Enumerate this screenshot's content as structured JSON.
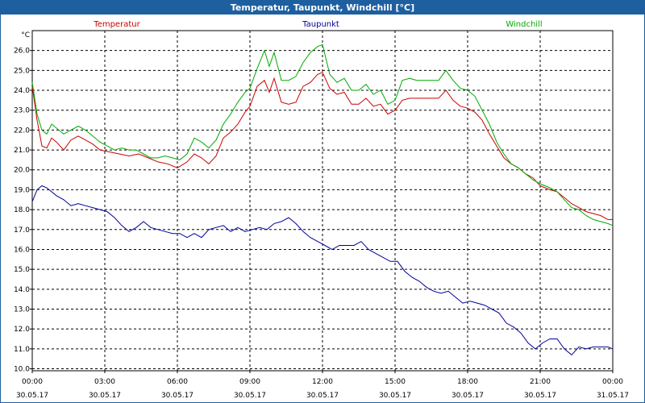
{
  "chart_data": {
    "type": "line",
    "title": "Temperatur, Taupunkt, Windchill [°C]",
    "ylabel": "°C",
    "ylim": [
      9.9,
      27.0
    ],
    "yticks": [
      "10.0",
      "11.0",
      "12.0",
      "13.0",
      "14.0",
      "15.0",
      "16.0",
      "17.0",
      "18.0",
      "19.0",
      "20.0",
      "21.0",
      "22.0",
      "23.0",
      "24.0",
      "25.0",
      "26.0"
    ],
    "xlim": [
      0,
      24
    ],
    "xticks": [
      {
        "time": "00:00",
        "date": "30.05.17"
      },
      {
        "time": "03:00",
        "date": "30.05.17"
      },
      {
        "time": "06:00",
        "date": "30.05.17"
      },
      {
        "time": "09:00",
        "date": "30.05.17"
      },
      {
        "time": "12:00",
        "date": "30.05.17"
      },
      {
        "time": "15:00",
        "date": "30.05.17"
      },
      {
        "time": "18:00",
        "date": "30.05.17"
      },
      {
        "time": "21:00",
        "date": "30.05.17"
      },
      {
        "time": "00:00",
        "date": "31.05.17"
      }
    ],
    "grid": true,
    "legend_position": "top",
    "series": [
      {
        "name": "Temperatur",
        "color": "#cc0000",
        "points": [
          [
            0,
            24.2
          ],
          [
            0.2,
            22.5
          ],
          [
            0.4,
            21.2
          ],
          [
            0.6,
            21.1
          ],
          [
            0.8,
            21.6
          ],
          [
            1.0,
            21.4
          ],
          [
            1.3,
            21.0
          ],
          [
            1.6,
            21.5
          ],
          [
            1.9,
            21.7
          ],
          [
            2.2,
            21.5
          ],
          [
            2.5,
            21.3
          ],
          [
            2.8,
            21.0
          ],
          [
            3.2,
            20.9
          ],
          [
            3.6,
            20.8
          ],
          [
            4.0,
            20.7
          ],
          [
            4.4,
            20.8
          ],
          [
            4.8,
            20.6
          ],
          [
            5.2,
            20.4
          ],
          [
            5.6,
            20.3
          ],
          [
            6.0,
            20.1
          ],
          [
            6.4,
            20.4
          ],
          [
            6.7,
            20.8
          ],
          [
            7.0,
            20.6
          ],
          [
            7.3,
            20.3
          ],
          [
            7.6,
            20.7
          ],
          [
            7.9,
            21.6
          ],
          [
            8.2,
            21.9
          ],
          [
            8.5,
            22.3
          ],
          [
            8.8,
            22.9
          ],
          [
            9.0,
            23.2
          ],
          [
            9.3,
            24.2
          ],
          [
            9.6,
            24.5
          ],
          [
            9.8,
            23.9
          ],
          [
            10.0,
            24.6
          ],
          [
            10.3,
            23.4
          ],
          [
            10.6,
            23.3
          ],
          [
            10.9,
            23.4
          ],
          [
            11.2,
            24.2
          ],
          [
            11.5,
            24.4
          ],
          [
            11.8,
            24.8
          ],
          [
            12.0,
            24.9
          ],
          [
            12.3,
            24.1
          ],
          [
            12.6,
            23.8
          ],
          [
            12.9,
            23.9
          ],
          [
            13.2,
            23.3
          ],
          [
            13.5,
            23.3
          ],
          [
            13.8,
            23.6
          ],
          [
            14.1,
            23.2
          ],
          [
            14.4,
            23.3
          ],
          [
            14.7,
            22.8
          ],
          [
            15.0,
            23.0
          ],
          [
            15.3,
            23.5
          ],
          [
            15.6,
            23.6
          ],
          [
            15.9,
            23.6
          ],
          [
            16.2,
            23.6
          ],
          [
            16.5,
            23.6
          ],
          [
            16.8,
            23.6
          ],
          [
            17.1,
            24.0
          ],
          [
            17.4,
            23.5
          ],
          [
            17.7,
            23.2
          ],
          [
            18.0,
            23.1
          ],
          [
            18.3,
            22.9
          ],
          [
            18.6,
            22.5
          ],
          [
            18.9,
            21.8
          ],
          [
            19.2,
            21.2
          ],
          [
            19.5,
            20.6
          ],
          [
            19.8,
            20.3
          ],
          [
            20.1,
            20.1
          ],
          [
            20.4,
            19.8
          ],
          [
            20.7,
            19.6
          ],
          [
            21.0,
            19.2
          ],
          [
            21.4,
            19.0
          ],
          [
            21.7,
            18.9
          ],
          [
            22.0,
            18.6
          ],
          [
            22.3,
            18.3
          ],
          [
            22.6,
            18.1
          ],
          [
            22.9,
            17.9
          ],
          [
            23.2,
            17.8
          ],
          [
            23.5,
            17.7
          ],
          [
            23.8,
            17.5
          ],
          [
            24.0,
            17.5
          ]
        ]
      },
      {
        "name": "Taupunkt",
        "color": "#000099",
        "points": [
          [
            0,
            18.4
          ],
          [
            0.2,
            19.0
          ],
          [
            0.4,
            19.2
          ],
          [
            0.6,
            19.1
          ],
          [
            0.8,
            18.9
          ],
          [
            1.0,
            18.7
          ],
          [
            1.3,
            18.5
          ],
          [
            1.6,
            18.2
          ],
          [
            1.9,
            18.3
          ],
          [
            2.2,
            18.2
          ],
          [
            2.5,
            18.1
          ],
          [
            2.8,
            18.0
          ],
          [
            3.1,
            17.9
          ],
          [
            3.4,
            17.6
          ],
          [
            3.7,
            17.2
          ],
          [
            4.0,
            16.9
          ],
          [
            4.3,
            17.1
          ],
          [
            4.6,
            17.4
          ],
          [
            4.9,
            17.1
          ],
          [
            5.2,
            17.0
          ],
          [
            5.5,
            16.9
          ],
          [
            5.8,
            16.8
          ],
          [
            6.1,
            16.8
          ],
          [
            6.4,
            16.6
          ],
          [
            6.7,
            16.8
          ],
          [
            7.0,
            16.6
          ],
          [
            7.3,
            17.0
          ],
          [
            7.6,
            17.1
          ],
          [
            7.9,
            17.2
          ],
          [
            8.2,
            16.9
          ],
          [
            8.5,
            17.1
          ],
          [
            8.8,
            16.9
          ],
          [
            9.1,
            17.0
          ],
          [
            9.4,
            17.1
          ],
          [
            9.7,
            17.0
          ],
          [
            10.0,
            17.3
          ],
          [
            10.3,
            17.4
          ],
          [
            10.6,
            17.6
          ],
          [
            10.9,
            17.3
          ],
          [
            11.2,
            16.9
          ],
          [
            11.5,
            16.6
          ],
          [
            11.8,
            16.4
          ],
          [
            12.1,
            16.2
          ],
          [
            12.4,
            16.0
          ],
          [
            12.7,
            16.2
          ],
          [
            13.0,
            16.2
          ],
          [
            13.3,
            16.2
          ],
          [
            13.6,
            16.4
          ],
          [
            13.9,
            16.0
          ],
          [
            14.2,
            15.8
          ],
          [
            14.5,
            15.6
          ],
          [
            14.8,
            15.4
          ],
          [
            15.1,
            15.4
          ],
          [
            15.4,
            14.9
          ],
          [
            15.7,
            14.6
          ],
          [
            16.0,
            14.4
          ],
          [
            16.3,
            14.1
          ],
          [
            16.6,
            13.9
          ],
          [
            16.9,
            13.8
          ],
          [
            17.2,
            13.9
          ],
          [
            17.5,
            13.6
          ],
          [
            17.8,
            13.3
          ],
          [
            18.1,
            13.4
          ],
          [
            18.4,
            13.3
          ],
          [
            18.7,
            13.2
          ],
          [
            19.0,
            13.0
          ],
          [
            19.3,
            12.8
          ],
          [
            19.6,
            12.3
          ],
          [
            19.9,
            12.1
          ],
          [
            20.2,
            11.8
          ],
          [
            20.5,
            11.3
          ],
          [
            20.8,
            11.0
          ],
          [
            21.1,
            11.3
          ],
          [
            21.4,
            11.5
          ],
          [
            21.7,
            11.5
          ],
          [
            22.0,
            11.0
          ],
          [
            22.3,
            10.7
          ],
          [
            22.6,
            11.1
          ],
          [
            22.9,
            11.0
          ],
          [
            23.2,
            11.1
          ],
          [
            23.5,
            11.1
          ],
          [
            23.8,
            11.1
          ],
          [
            24.0,
            11.0
          ]
        ]
      },
      {
        "name": "Windchill",
        "color": "#00aa00",
        "points": [
          [
            0,
            24.4
          ],
          [
            0.2,
            22.8
          ],
          [
            0.4,
            22.0
          ],
          [
            0.6,
            21.8
          ],
          [
            0.8,
            22.3
          ],
          [
            1.0,
            22.1
          ],
          [
            1.3,
            21.8
          ],
          [
            1.6,
            22.0
          ],
          [
            1.9,
            22.2
          ],
          [
            2.2,
            22.0
          ],
          [
            2.5,
            21.7
          ],
          [
            2.8,
            21.4
          ],
          [
            3.1,
            21.2
          ],
          [
            3.4,
            21.0
          ],
          [
            3.7,
            21.1
          ],
          [
            4.0,
            21.0
          ],
          [
            4.3,
            21.0
          ],
          [
            4.6,
            20.8
          ],
          [
            4.9,
            20.6
          ],
          [
            5.2,
            20.6
          ],
          [
            5.5,
            20.7
          ],
          [
            5.8,
            20.6
          ],
          [
            6.1,
            20.5
          ],
          [
            6.4,
            20.8
          ],
          [
            6.7,
            21.6
          ],
          [
            7.0,
            21.4
          ],
          [
            7.3,
            21.1
          ],
          [
            7.6,
            21.5
          ],
          [
            7.9,
            22.3
          ],
          [
            8.2,
            22.8
          ],
          [
            8.5,
            23.4
          ],
          [
            8.8,
            23.9
          ],
          [
            9.0,
            24.1
          ],
          [
            9.3,
            25.1
          ],
          [
            9.6,
            26.0
          ],
          [
            9.8,
            25.2
          ],
          [
            10.0,
            25.9
          ],
          [
            10.3,
            24.5
          ],
          [
            10.6,
            24.5
          ],
          [
            10.9,
            24.7
          ],
          [
            11.2,
            25.4
          ],
          [
            11.5,
            25.9
          ],
          [
            11.8,
            26.2
          ],
          [
            12.0,
            26.3
          ],
          [
            12.3,
            24.8
          ],
          [
            12.6,
            24.4
          ],
          [
            12.9,
            24.6
          ],
          [
            13.2,
            24.0
          ],
          [
            13.5,
            24.0
          ],
          [
            13.8,
            24.3
          ],
          [
            14.1,
            23.8
          ],
          [
            14.4,
            24.0
          ],
          [
            14.7,
            23.3
          ],
          [
            15.0,
            23.5
          ],
          [
            15.3,
            24.5
          ],
          [
            15.6,
            24.6
          ],
          [
            15.9,
            24.5
          ],
          [
            16.2,
            24.5
          ],
          [
            16.5,
            24.5
          ],
          [
            16.8,
            24.5
          ],
          [
            17.1,
            25.0
          ],
          [
            17.4,
            24.5
          ],
          [
            17.7,
            24.1
          ],
          [
            18.0,
            24.0
          ],
          [
            18.3,
            23.7
          ],
          [
            18.6,
            23.0
          ],
          [
            18.9,
            22.3
          ],
          [
            19.2,
            21.4
          ],
          [
            19.5,
            20.8
          ],
          [
            19.8,
            20.3
          ],
          [
            20.1,
            20.1
          ],
          [
            20.4,
            19.8
          ],
          [
            20.7,
            19.5
          ],
          [
            21.0,
            19.3
          ],
          [
            21.4,
            19.1
          ],
          [
            21.7,
            18.9
          ],
          [
            22.0,
            18.5
          ],
          [
            22.3,
            18.1
          ],
          [
            22.6,
            18.0
          ],
          [
            22.9,
            17.7
          ],
          [
            23.2,
            17.5
          ],
          [
            23.5,
            17.4
          ],
          [
            23.8,
            17.3
          ],
          [
            24.0,
            17.2
          ]
        ]
      }
    ]
  }
}
